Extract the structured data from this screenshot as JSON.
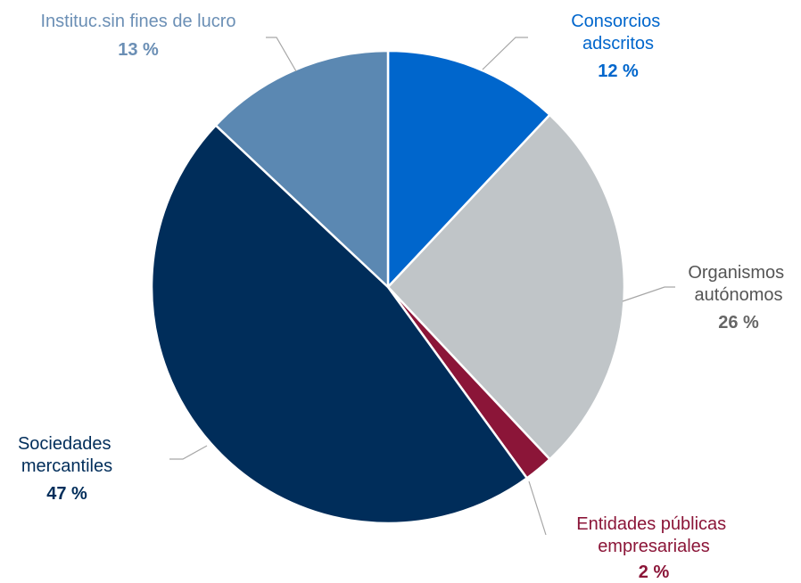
{
  "chart_data": {
    "type": "pie",
    "categories": [
      "Consorcios adscritos",
      "Organismos autónomos",
      "Entidades públicas empresariales",
      "Sociedades mercantiles",
      "Instituc.sin fines de lucro"
    ],
    "values": [
      12,
      26,
      2,
      47,
      13
    ],
    "value_labels": [
      "12 %",
      "26 %",
      "2 %",
      "47 %",
      "13 %"
    ],
    "colors": [
      "#0066cc",
      "#c0c5c8",
      "#8b1538",
      "#002d5a",
      "#5b88b2"
    ]
  }
}
